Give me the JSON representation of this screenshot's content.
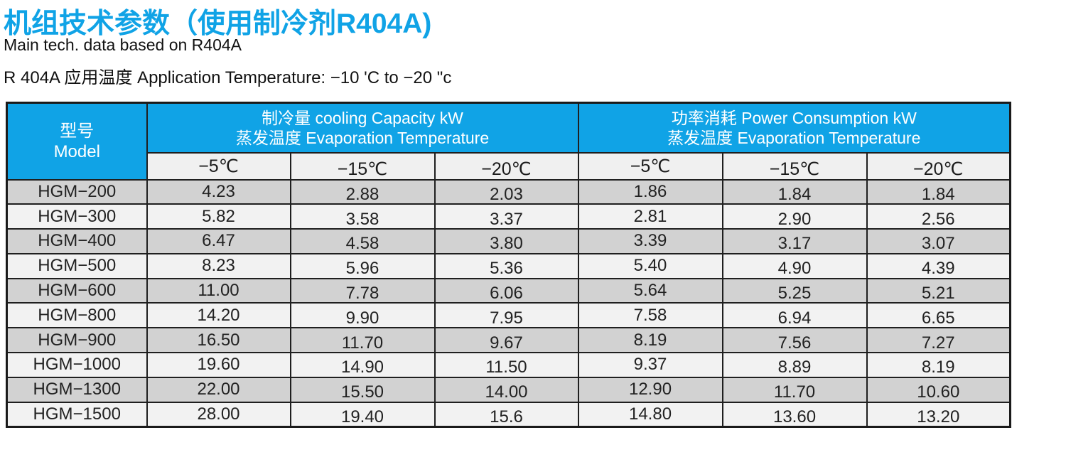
{
  "page": {
    "title": "机组技术参数（使用制冷剂R404A)",
    "subtitle": "Main tech. data based on R404A",
    "application_line": "R 404A 应用温度 Application Temperature: −10 'C to −20 \"c"
  },
  "colors": {
    "accent_blue": "#10a3e6",
    "header_text": "#ffffff",
    "row_dark": "#d2d2d2",
    "row_light": "#f2f2f2",
    "subheader_bg": "#f0f0f0",
    "border": "#1f1f1f"
  },
  "table": {
    "model_header": {
      "zh": "型号",
      "en": "Model"
    },
    "groups": [
      {
        "line1": "制冷量 cooling Capacity kW",
        "line2": "蒸发温度 Evaporation Temperature"
      },
      {
        "line1": "功率消耗 Power Consumption kW",
        "line2": "蒸发温度 Evaporation Temperature"
      }
    ],
    "temp_columns": [
      "−5℃",
      "−15℃",
      "−20℃",
      "−5℃",
      "−15℃",
      "−20℃"
    ],
    "rows": [
      {
        "model": "HGM−200",
        "values": [
          "4.23",
          "2.88",
          "2.03",
          "1.86",
          "1.84",
          "1.84"
        ]
      },
      {
        "model": "HGM−300",
        "values": [
          "5.82",
          "3.58",
          "3.37",
          "2.81",
          "2.90",
          "2.56"
        ]
      },
      {
        "model": "HGM−400",
        "values": [
          "6.47",
          "4.58",
          "3.80",
          "3.39",
          "3.17",
          "3.07"
        ]
      },
      {
        "model": "HGM−500",
        "values": [
          "8.23",
          "5.96",
          "5.36",
          "5.40",
          "4.90",
          "4.39"
        ]
      },
      {
        "model": "HGM−600",
        "values": [
          "11.00",
          "7.78",
          "6.06",
          "5.64",
          "5.25",
          "5.21"
        ]
      },
      {
        "model": "HGM−800",
        "values": [
          "14.20",
          "9.90",
          "7.95",
          "7.58",
          "6.94",
          "6.65"
        ]
      },
      {
        "model": "HGM−900",
        "values": [
          "16.50",
          "11.70",
          "9.67",
          "8.19",
          "7.56",
          "7.27"
        ]
      },
      {
        "model": "HGM−1000",
        "values": [
          "19.60",
          "14.90",
          "11.50",
          "9.37",
          "8.89",
          "8.19"
        ]
      },
      {
        "model": "HGM−1300",
        "values": [
          "22.00",
          "15.50",
          "14.00",
          "12.90",
          "11.70",
          "10.60"
        ]
      },
      {
        "model": "HGM−1500",
        "values": [
          "28.00",
          "19.40",
          "15.6",
          "14.80",
          "13.60",
          "13.20"
        ]
      }
    ]
  }
}
